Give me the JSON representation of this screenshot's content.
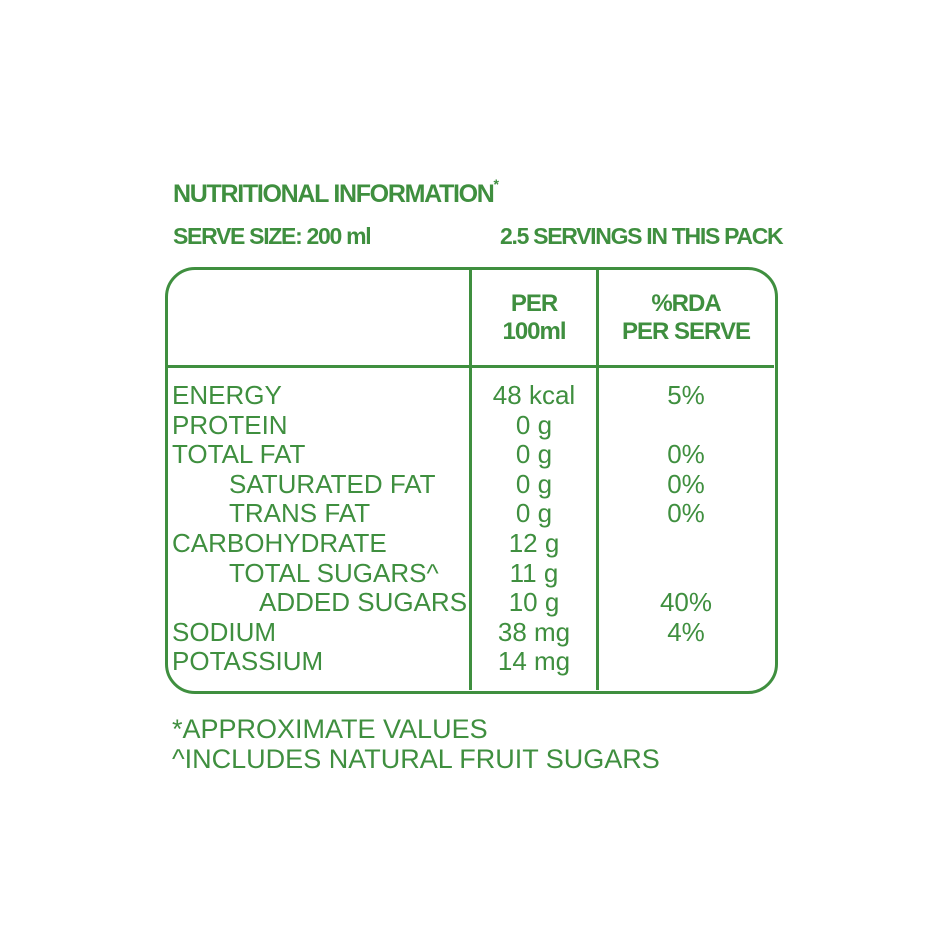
{
  "title": "NUTRITIONAL INFORMATION",
  "title_mark": "*",
  "serve_size": "SERVE SIZE: 200 ml",
  "servings": "2.5 SERVINGS IN THIS PACK",
  "columns": {
    "per": "PER",
    "per_unit": "100ml",
    "rda": "%RDA",
    "rda_sub": "PER SERVE"
  },
  "rows": [
    {
      "name": "ENERGY",
      "indent": 0,
      "value": "48 kcal",
      "rda": "5%"
    },
    {
      "name": "PROTEIN",
      "indent": 0,
      "value": "0 g",
      "rda": ""
    },
    {
      "name": "TOTAL FAT",
      "indent": 0,
      "value": "0 g",
      "rda": "0%"
    },
    {
      "name": "SATURATED FAT",
      "indent": 1,
      "value": "0 g",
      "rda": "0%"
    },
    {
      "name": "TRANS FAT",
      "indent": 1,
      "value": "0 g",
      "rda": "0%"
    },
    {
      "name": "CARBOHYDRATE",
      "indent": 0,
      "value": "12 g",
      "rda": ""
    },
    {
      "name": "TOTAL SUGARS^",
      "indent": 1,
      "value": "11 g",
      "rda": ""
    },
    {
      "name": "ADDED SUGARS",
      "indent": 2,
      "value": "10 g",
      "rda": "40%"
    },
    {
      "name": "SODIUM",
      "indent": 0,
      "value": "38 mg",
      "rda": "4%"
    },
    {
      "name": "POTASSIUM",
      "indent": 0,
      "value": "14 mg",
      "rda": ""
    }
  ],
  "footnotes": [
    "*APPROXIMATE VALUES",
    "^INCLUDES NATURAL FRUIT SUGARS"
  ],
  "colors": {
    "ink": "#3f8f3f",
    "background": "#ffffff"
  }
}
